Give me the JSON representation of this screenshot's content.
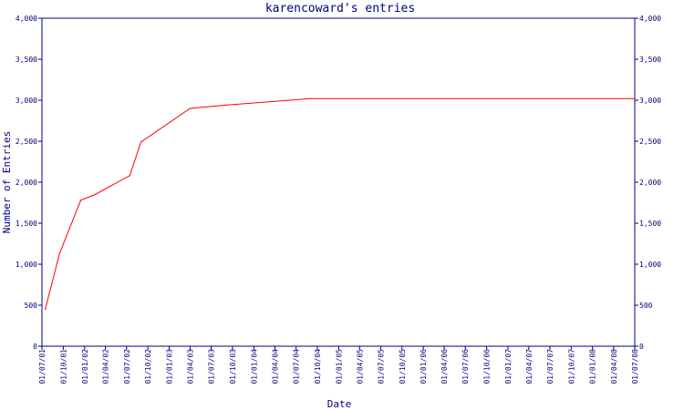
{
  "chart_data": {
    "type": "line",
    "title": "karencoward's entries",
    "xlabel": "Date",
    "ylabel": "Number of Entries",
    "ylim": [
      0,
      4000
    ],
    "grid": false,
    "colors": {
      "axis": "#000080",
      "line": "#ff0000",
      "text": "#000080",
      "background": "#ffffff"
    },
    "y_ticks": [
      {
        "value": 0,
        "label": "0"
      },
      {
        "value": 500,
        "label": "500"
      },
      {
        "value": 1000,
        "label": "1,000"
      },
      {
        "value": 1500,
        "label": "1,500"
      },
      {
        "value": 2000,
        "label": "2,000"
      },
      {
        "value": 2500,
        "label": "2,500"
      },
      {
        "value": 3000,
        "label": "3,000"
      },
      {
        "value": 3500,
        "label": "3,500"
      },
      {
        "value": 4000,
        "label": "4,000"
      }
    ],
    "x_ticks": [
      "01/07/01",
      "01/10/01",
      "01/01/02",
      "01/04/02",
      "01/07/02",
      "01/10/02",
      "01/01/03",
      "01/04/03",
      "01/07/03",
      "01/10/03",
      "01/01/04",
      "01/04/04",
      "01/07/04",
      "01/10/04",
      "01/01/05",
      "01/04/05",
      "01/07/05",
      "01/10/05",
      "01/01/06",
      "01/04/06",
      "01/07/06",
      "01/10/06",
      "01/01/07",
      "01/04/07",
      "01/07/07",
      "01/10/07",
      "01/01/08",
      "01/04/08",
      "01/07/08"
    ],
    "series": [
      {
        "points": [
          {
            "x": "2001-07-15",
            "y": 450
          },
          {
            "x": "2001-09-15",
            "y": 1130
          },
          {
            "x": "2001-12-15",
            "y": 1780
          },
          {
            "x": "2002-02-15",
            "y": 1850
          },
          {
            "x": "2002-07-15",
            "y": 2080
          },
          {
            "x": "2002-09-01",
            "y": 2490
          },
          {
            "x": "2003-04-01",
            "y": 2900
          },
          {
            "x": "2003-09-01",
            "y": 2940
          },
          {
            "x": "2004-09-01",
            "y": 3020
          },
          {
            "x": "2008-07-01",
            "y": 3020
          }
        ]
      }
    ]
  }
}
